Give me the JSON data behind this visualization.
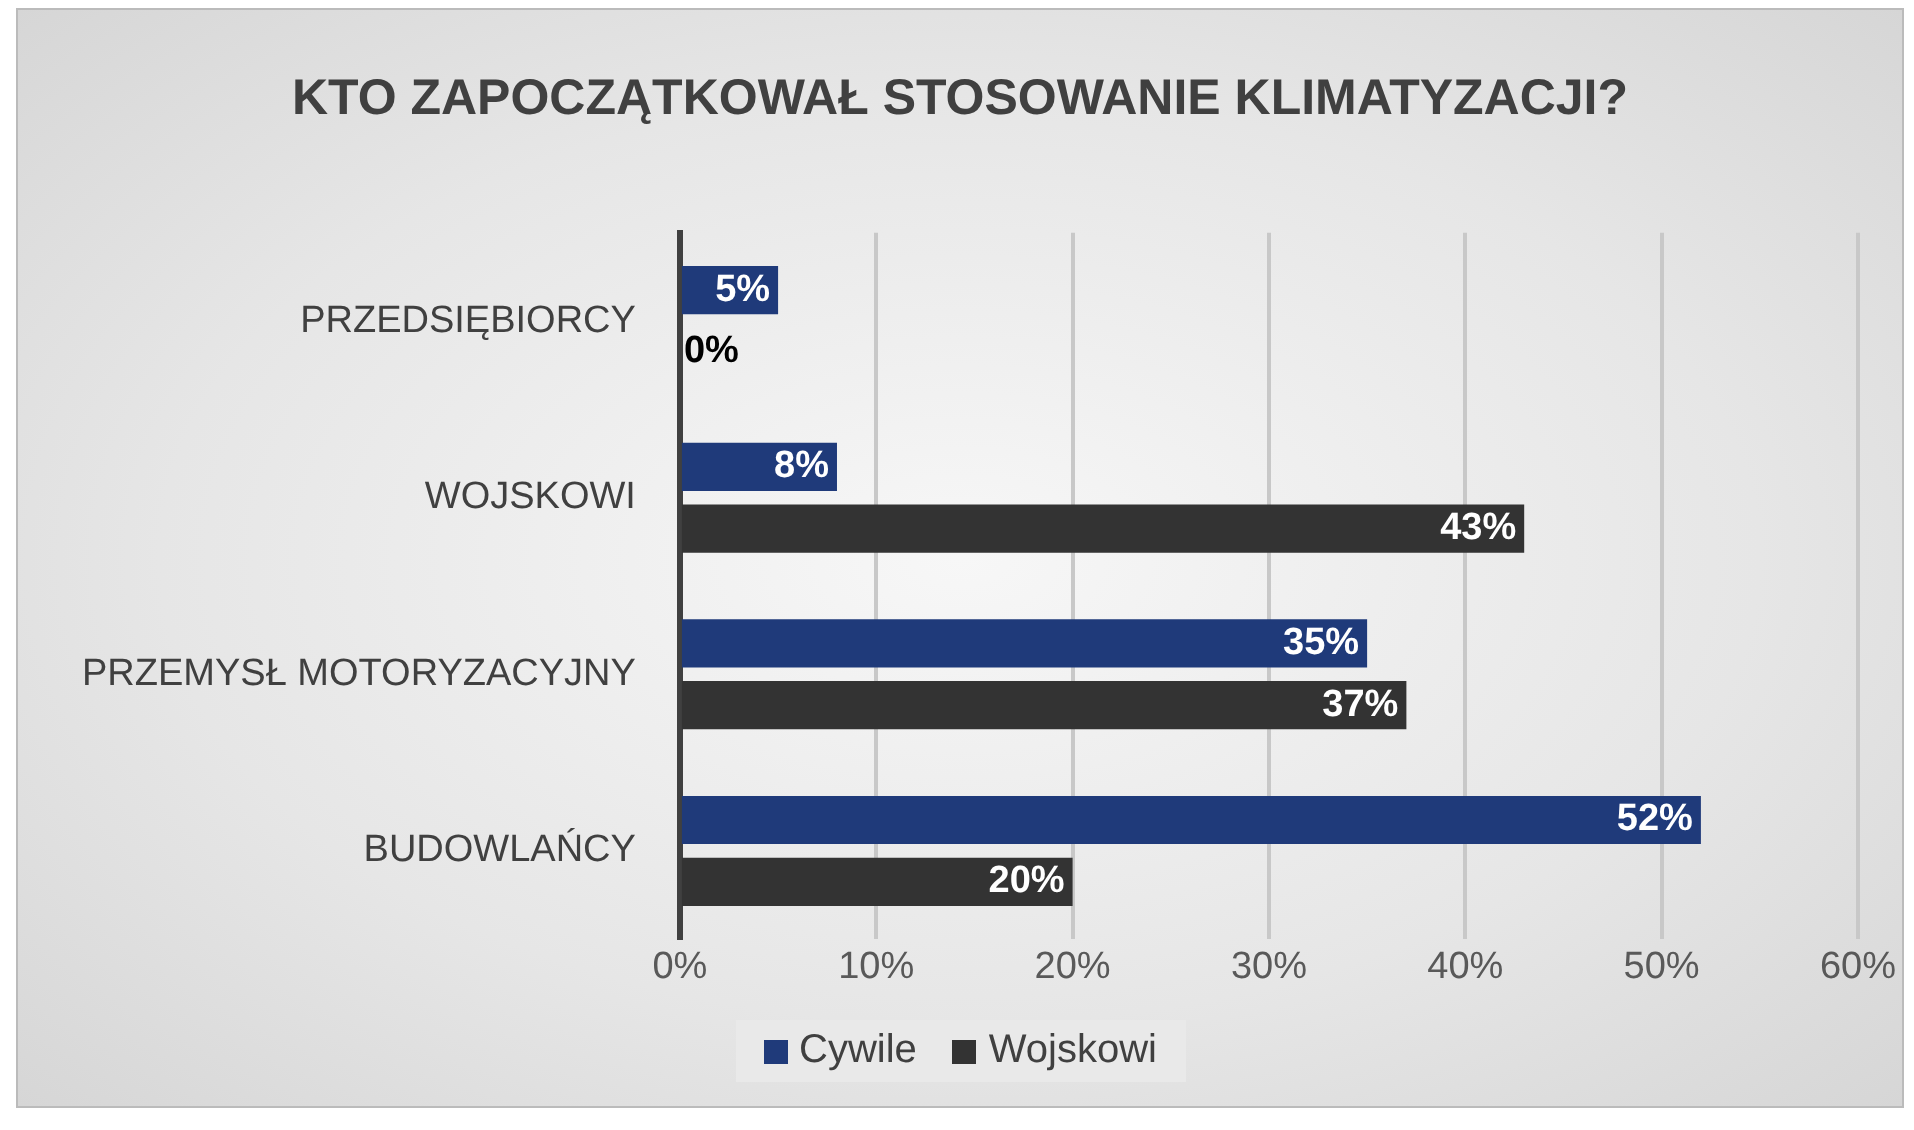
{
  "chart_data": {
    "type": "bar",
    "orientation": "horizontal",
    "title": "KTO ZAPOCZĄTKOWAŁ STOSOWANIE KLIMATYZACJI?",
    "categories": [
      "PRZEDSIĘBIORCY",
      "WOJSKOWI",
      "PRZEMYSŁ MOTORYZACYJNY",
      "BUDOWLAŃCY"
    ],
    "series": [
      {
        "name": "Cywile",
        "color": "#1f3a7a",
        "values": [
          5,
          8,
          35,
          52
        ],
        "value_labels": [
          "5%",
          "8%",
          "35%",
          "52%"
        ]
      },
      {
        "name": "Wojskowi",
        "color": "#333333",
        "values": [
          0,
          43,
          37,
          20
        ],
        "value_labels": [
          "0%",
          "43%",
          "37%",
          "20%"
        ]
      }
    ],
    "xlim": [
      0,
      60
    ],
    "xticks": [
      {
        "value": 0,
        "label": "0%"
      },
      {
        "value": 10,
        "label": "10%"
      },
      {
        "value": 20,
        "label": "20%"
      },
      {
        "value": 30,
        "label": "30%"
      },
      {
        "value": 40,
        "label": "40%"
      },
      {
        "value": 50,
        "label": "50%"
      },
      {
        "value": 60,
        "label": "60%"
      }
    ],
    "grid": "x",
    "legend": "bottom"
  }
}
